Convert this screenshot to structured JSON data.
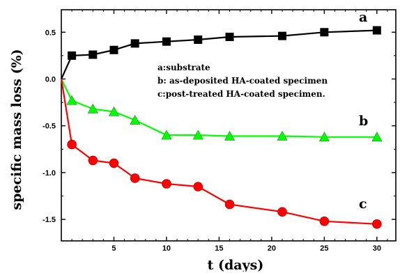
{
  "chart_data": {
    "type": "line",
    "xlabel": "t (days)",
    "ylabel": "specific mass loss (%)",
    "xlim": [
      0,
      31.8
    ],
    "ylim": [
      -1.73,
      0.74
    ],
    "x_ticks": [
      5,
      10,
      15,
      20,
      25,
      30
    ],
    "x_tick_labels": [
      "5",
      "10",
      "15",
      "20",
      "25",
      "30"
    ],
    "y_ticks": [
      0.5,
      0.0,
      -0.5,
      -1.0,
      -1.5
    ],
    "y_tick_labels": [
      "0.5",
      "0.0",
      "-0.5",
      "-1.0",
      "-1.5"
    ],
    "grid": false,
    "legend_lines": [
      "a:substrate",
      "b: as-deposited HA-coated specimen",
      "c:post-treated HA-coated specimen."
    ],
    "series": [
      {
        "letter": "a",
        "marker": "square",
        "line_color": "#000000",
        "marker_color": "#000000",
        "x": [
          0,
          1,
          3,
          5,
          7,
          10,
          13,
          16,
          21,
          25,
          30
        ],
        "y": [
          0.0,
          0.25,
          0.26,
          0.31,
          0.38,
          0.4,
          0.42,
          0.45,
          0.46,
          0.5,
          0.52
        ]
      },
      {
        "letter": "b",
        "marker": "triangle",
        "line_color": "#00ff00",
        "marker_color": "#00ff00",
        "x": [
          0,
          1,
          3,
          5,
          7,
          10,
          13,
          16,
          21,
          25,
          30
        ],
        "y": [
          0.0,
          -0.23,
          -0.32,
          -0.35,
          -0.44,
          -0.6,
          -0.6,
          -0.61,
          -0.61,
          -0.62,
          -0.62
        ]
      },
      {
        "letter": "c",
        "marker": "circle",
        "line_color": "#ff0000",
        "marker_color": "#ff0000",
        "x": [
          0,
          1,
          3,
          5,
          7,
          10,
          13,
          16,
          21,
          25,
          30
        ],
        "y": [
          0.0,
          -0.7,
          -0.87,
          -0.9,
          -1.06,
          -1.12,
          -1.15,
          -1.34,
          -1.42,
          -1.52,
          -1.55
        ]
      }
    ]
  }
}
